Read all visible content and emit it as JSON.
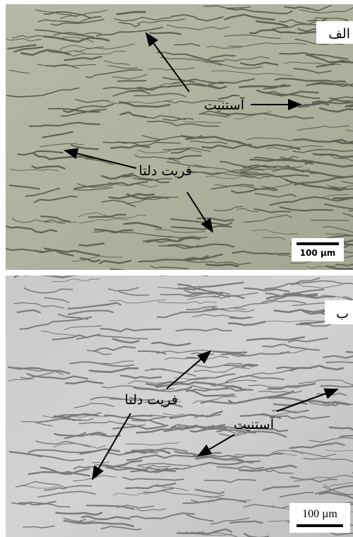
{
  "panels": [
    {
      "label": "الف",
      "annotations": [
        "آستنیت",
        "فریت دلتا"
      ],
      "scale_bar": "100 µm"
    },
    {
      "label": "ب",
      "annotations": [
        "فریت دلتا",
        "آستنیت"
      ],
      "scale_bar": "100 µm"
    }
  ]
}
